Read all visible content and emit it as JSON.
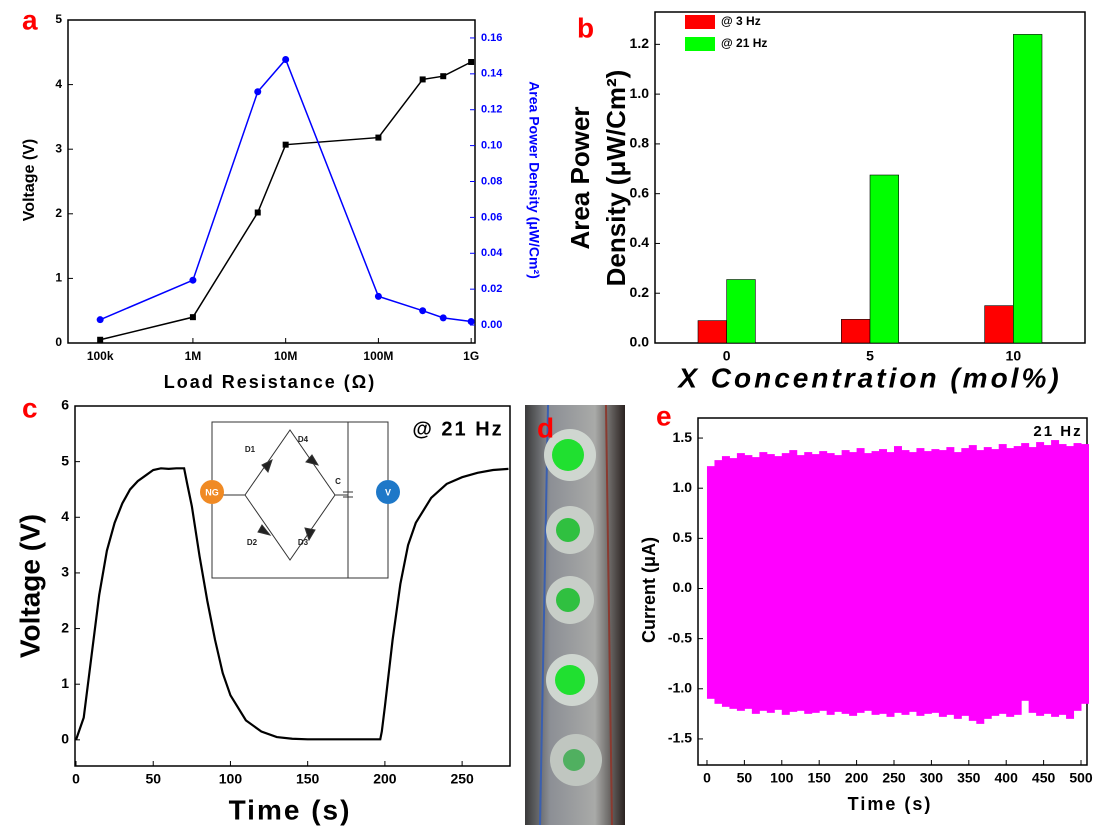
{
  "chart_data": [
    {
      "type": "line",
      "label": "a",
      "xlabel": "Load Resistance (Ω)",
      "ylabel": "Voltage (V)",
      "y2label": "Area Power Density (μW/Cm²)",
      "xlog": true,
      "xlim": [
        45000,
        1100000000
      ],
      "xticks": [
        {
          "value": 100000,
          "label": "100k"
        },
        {
          "value": 1000000,
          "label": "1M"
        },
        {
          "value": 10000000,
          "label": "10M"
        },
        {
          "value": 100000000,
          "label": "100M"
        },
        {
          "value": 1000000000,
          "label": "1G"
        }
      ],
      "ylim": [
        0,
        5
      ],
      "yticks": [
        0,
        1,
        2,
        3,
        4,
        5
      ],
      "y2lim": [
        -0.01,
        0.17
      ],
      "y2ticks": [
        {
          "value": 0,
          "label": "0.00"
        },
        0.02,
        0.04,
        0.06,
        0.08,
        {
          "value": 0.1,
          "label": "0.10"
        },
        0.12,
        0.14,
        0.16
      ],
      "y2color": "#0000ff",
      "x": [
        100000,
        1000000,
        5000000,
        10000000,
        100000000,
        300000000,
        500000000,
        1000000000
      ],
      "series": [
        {
          "color": "#000000",
          "marker": "square",
          "values": [
            0.05,
            0.4,
            2.02,
            3.07,
            3.18,
            4.08,
            4.13,
            4.35
          ]
        },
        {
          "color": "#0000ff",
          "marker": "circle",
          "axis": "y2",
          "values": [
            0.003,
            0.025,
            0.13,
            0.148,
            0.016,
            0.008,
            0.004,
            0.002
          ]
        }
      ]
    },
    {
      "type": "bar",
      "label": "b",
      "xlabel": "X Concentration (mol%)",
      "ylabel": [
        "Area Power",
        "Density (μW/Cm²)"
      ],
      "categories": [
        "0",
        "5",
        "10"
      ],
      "ylim": [
        0,
        1.33
      ],
      "yticks": [
        {
          "value": 0,
          "label": "0.0"
        },
        0.2,
        0.4,
        0.6,
        0.8,
        {
          "value": 1,
          "label": "1.0"
        },
        1.2
      ],
      "legend": "upper left",
      "series": [
        {
          "name": "@ 3 Hz",
          "color": "#ff0000",
          "values": [
            0.09,
            0.095,
            0.15
          ]
        },
        {
          "name": "@ 21 Hz",
          "color": "#00ff00",
          "values": [
            0.255,
            0.675,
            1.24
          ]
        }
      ]
    },
    {
      "type": "line",
      "label": "c",
      "xlabel": "Time (s)",
      "ylabel": "Voltage (V)",
      "annotation": "@ 21 Hz",
      "inset_labels": [
        "D1",
        "D2",
        "D3",
        "D4",
        "C",
        "NG",
        "V"
      ],
      "xlim": [
        -0.65,
        281
      ],
      "xticks": [
        0,
        50,
        100,
        150,
        200,
        250
      ],
      "ylim": [
        -0.47,
        6
      ],
      "yticks": [
        0,
        1,
        2,
        3,
        4,
        5,
        6
      ],
      "x": [
        0,
        5,
        10,
        15,
        20,
        25,
        30,
        35,
        40,
        45,
        50,
        55,
        60,
        65,
        70,
        72,
        75,
        80,
        85,
        90,
        95,
        100,
        110,
        120,
        130,
        140,
        150,
        170,
        190,
        197,
        198,
        200,
        205,
        210,
        215,
        220,
        230,
        240,
        250,
        260,
        270,
        280
      ],
      "series": [
        {
          "color": "#000000",
          "values": [
            0,
            0.4,
            1.5,
            2.6,
            3.4,
            3.9,
            4.25,
            4.5,
            4.65,
            4.75,
            4.85,
            4.88,
            4.87,
            4.88,
            4.88,
            4.6,
            4.2,
            3.3,
            2.5,
            1.8,
            1.2,
            0.8,
            0.35,
            0.15,
            0.05,
            0.02,
            0.01,
            0.01,
            0.01,
            0.01,
            0.15,
            0.6,
            1.8,
            2.8,
            3.5,
            3.9,
            4.35,
            4.6,
            4.72,
            4.8,
            4.85,
            4.87
          ]
        }
      ]
    },
    {
      "type": "band",
      "label": "e",
      "xlabel": "Time (s)",
      "ylabel": "Current (μA)",
      "annotation": "21 Hz",
      "color": "#ff00ff",
      "xlim": [
        -12,
        508
      ],
      "xticks": [
        0,
        50,
        100,
        150,
        200,
        250,
        300,
        350,
        400,
        450,
        500
      ],
      "ylim": [
        -1.76,
        1.7
      ],
      "yticks": [
        -1.5,
        {
          "value": -1,
          "label": "-1.0"
        },
        -0.5,
        {
          "value": 0,
          "label": "0.0"
        },
        0.5,
        {
          "value": 1,
          "label": "1.0"
        },
        1.5
      ],
      "x": [
        0,
        10,
        20,
        30,
        40,
        50,
        60,
        70,
        80,
        90,
        100,
        110,
        120,
        130,
        140,
        150,
        160,
        170,
        180,
        190,
        200,
        210,
        220,
        230,
        240,
        250,
        260,
        270,
        280,
        290,
        300,
        310,
        320,
        330,
        340,
        350,
        360,
        370,
        380,
        390,
        400,
        410,
        420,
        430,
        440,
        450,
        460,
        470,
        480,
        490,
        500
      ],
      "upper": [
        1.22,
        1.28,
        1.32,
        1.3,
        1.35,
        1.33,
        1.31,
        1.36,
        1.34,
        1.32,
        1.35,
        1.38,
        1.33,
        1.36,
        1.34,
        1.37,
        1.35,
        1.33,
        1.38,
        1.36,
        1.4,
        1.35,
        1.37,
        1.39,
        1.36,
        1.42,
        1.38,
        1.36,
        1.4,
        1.37,
        1.39,
        1.38,
        1.41,
        1.36,
        1.4,
        1.43,
        1.38,
        1.41,
        1.39,
        1.44,
        1.4,
        1.42,
        1.45,
        1.41,
        1.46,
        1.43,
        1.48,
        1.44,
        1.42,
        1.45,
        1.44
      ],
      "lower": [
        -1.1,
        -1.15,
        -1.18,
        -1.2,
        -1.22,
        -1.2,
        -1.25,
        -1.22,
        -1.24,
        -1.21,
        -1.26,
        -1.23,
        -1.22,
        -1.25,
        -1.24,
        -1.22,
        -1.26,
        -1.23,
        -1.25,
        -1.27,
        -1.24,
        -1.22,
        -1.26,
        -1.25,
        -1.28,
        -1.24,
        -1.26,
        -1.23,
        -1.27,
        -1.25,
        -1.24,
        -1.28,
        -1.26,
        -1.3,
        -1.27,
        -1.32,
        -1.35,
        -1.3,
        -1.27,
        -1.25,
        -1.28,
        -1.26,
        -1.12,
        -1.24,
        -1.27,
        -1.25,
        -1.28,
        -1.26,
        -1.3,
        -1.22,
        -1.15
      ]
    }
  ],
  "photo": {
    "label": "d"
  }
}
